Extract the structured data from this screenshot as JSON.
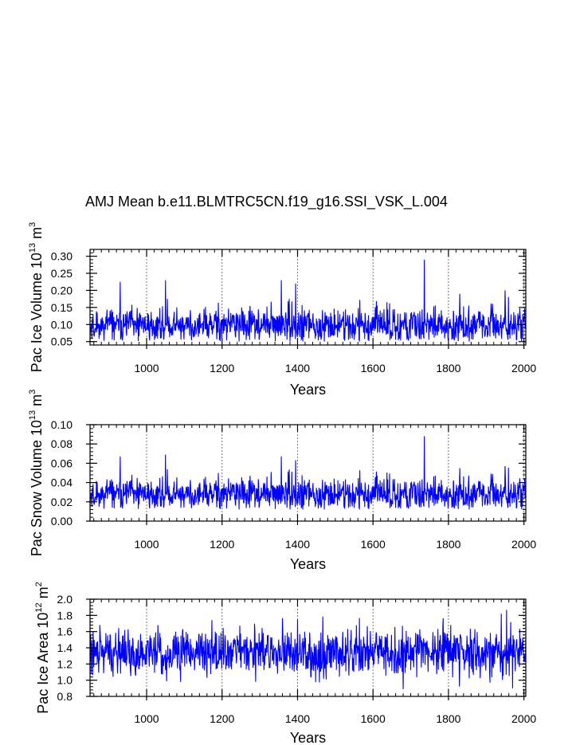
{
  "title": "AMJ Mean b.e11.BLMTRC5CN.f19_g16.SSI_VSK_L.004",
  "line_color": "#0000ff",
  "chart_data": [
    {
      "type": "line",
      "title": "AMJ Mean b.e11.BLMTRC5CN.f19_g16.SSI_VSK_L.004",
      "xlabel": "Years",
      "ylabel": "Pac Ice Volume 10^13 m^3",
      "ylabel_parts": {
        "base": "Pac Ice Volume 10",
        "exp1": "13",
        "mid": " m",
        "exp2": "3"
      },
      "xlim": [
        850,
        2005
      ],
      "ylim": [
        0.04,
        0.32
      ],
      "xticks": [
        1000,
        1200,
        1400,
        1600,
        1800,
        2000
      ],
      "xtick_labels": [
        "1000",
        "1200",
        "1400",
        "1600",
        "1800",
        "2000"
      ],
      "yticks": [
        0.05,
        0.1,
        0.15,
        0.2,
        0.25,
        0.3
      ],
      "ytick_labels": [
        "0.05",
        "0.10",
        "0.15",
        "0.20",
        "0.25",
        "0.30"
      ],
      "vgrid": [
        1000,
        1200,
        1400,
        1600,
        1800,
        2000
      ],
      "series_spec": {
        "name": "Pac Ice Volume",
        "x_start": 850,
        "x_end": 2005,
        "mean": 0.095,
        "sd": 0.024,
        "floor": 0.05,
        "seed": 11,
        "peaks": [
          [
            930,
            0.225
          ],
          [
            1050,
            0.23
          ],
          [
            1357,
            0.23
          ],
          [
            1395,
            0.22
          ],
          [
            1736,
            0.29
          ],
          [
            1830,
            0.19
          ],
          [
            1950,
            0.2
          ]
        ]
      }
    },
    {
      "type": "line",
      "xlabel": "Years",
      "ylabel": "Pac Snow Volume 10^13 m^3",
      "ylabel_parts": {
        "base": "Pac Snow Volume 10",
        "exp1": "13",
        "mid": " m",
        "exp2": "3"
      },
      "xlim": [
        850,
        2005
      ],
      "ylim": [
        0.0,
        0.1
      ],
      "xticks": [
        1000,
        1200,
        1400,
        1600,
        1800,
        2000
      ],
      "xtick_labels": [
        "1000",
        "1200",
        "1400",
        "1600",
        "1800",
        "2000"
      ],
      "yticks": [
        0.0,
        0.02,
        0.04,
        0.06,
        0.08,
        0.1
      ],
      "ytick_labels": [
        "0.00",
        "0.02",
        "0.04",
        "0.06",
        "0.08",
        "0.10"
      ],
      "vgrid": [
        1000,
        1200,
        1400,
        1600,
        1800,
        2000
      ],
      "series_spec": {
        "name": "Pac Snow Volume",
        "x_start": 850,
        "x_end": 2005,
        "mean": 0.027,
        "sd": 0.008,
        "floor": 0.012,
        "seed": 11,
        "peaks": [
          [
            930,
            0.067
          ],
          [
            1050,
            0.069
          ],
          [
            1357,
            0.067
          ],
          [
            1395,
            0.063
          ],
          [
            1736,
            0.088
          ],
          [
            1830,
            0.055
          ],
          [
            1950,
            0.057
          ]
        ]
      }
    },
    {
      "type": "line",
      "xlabel": "Years",
      "ylabel": "Pac Ice Area 10^12 m^2",
      "ylabel_parts": {
        "base": "Pac Ice Area 10",
        "exp1": "12",
        "mid": " m",
        "exp2": "2"
      },
      "xlim": [
        850,
        2005
      ],
      "ylim": [
        0.8,
        2.0
      ],
      "xticks": [
        1000,
        1200,
        1400,
        1600,
        1800,
        2000
      ],
      "xtick_labels": [
        "1000",
        "1200",
        "1400",
        "1600",
        "1800",
        "2000"
      ],
      "yticks": [
        0.8,
        1.0,
        1.2,
        1.4,
        1.6,
        1.8,
        2.0
      ],
      "ytick_labels": [
        "0.8",
        "1.0",
        "1.2",
        "1.4",
        "1.6",
        "1.8",
        "2.0"
      ],
      "vgrid": [
        1000,
        1200,
        1400,
        1600,
        1800,
        2000
      ],
      "series_spec": {
        "name": "Pac Ice Area",
        "x_start": 850,
        "x_end": 2005,
        "mean": 1.33,
        "sd": 0.14,
        "floor": 0.88,
        "seed": 29,
        "peaks": [
          [
            1030,
            1.68
          ],
          [
            1400,
            1.75
          ],
          [
            1680,
            0.89
          ],
          [
            1940,
            1.82
          ],
          [
            1970,
            0.9
          ]
        ]
      }
    }
  ]
}
